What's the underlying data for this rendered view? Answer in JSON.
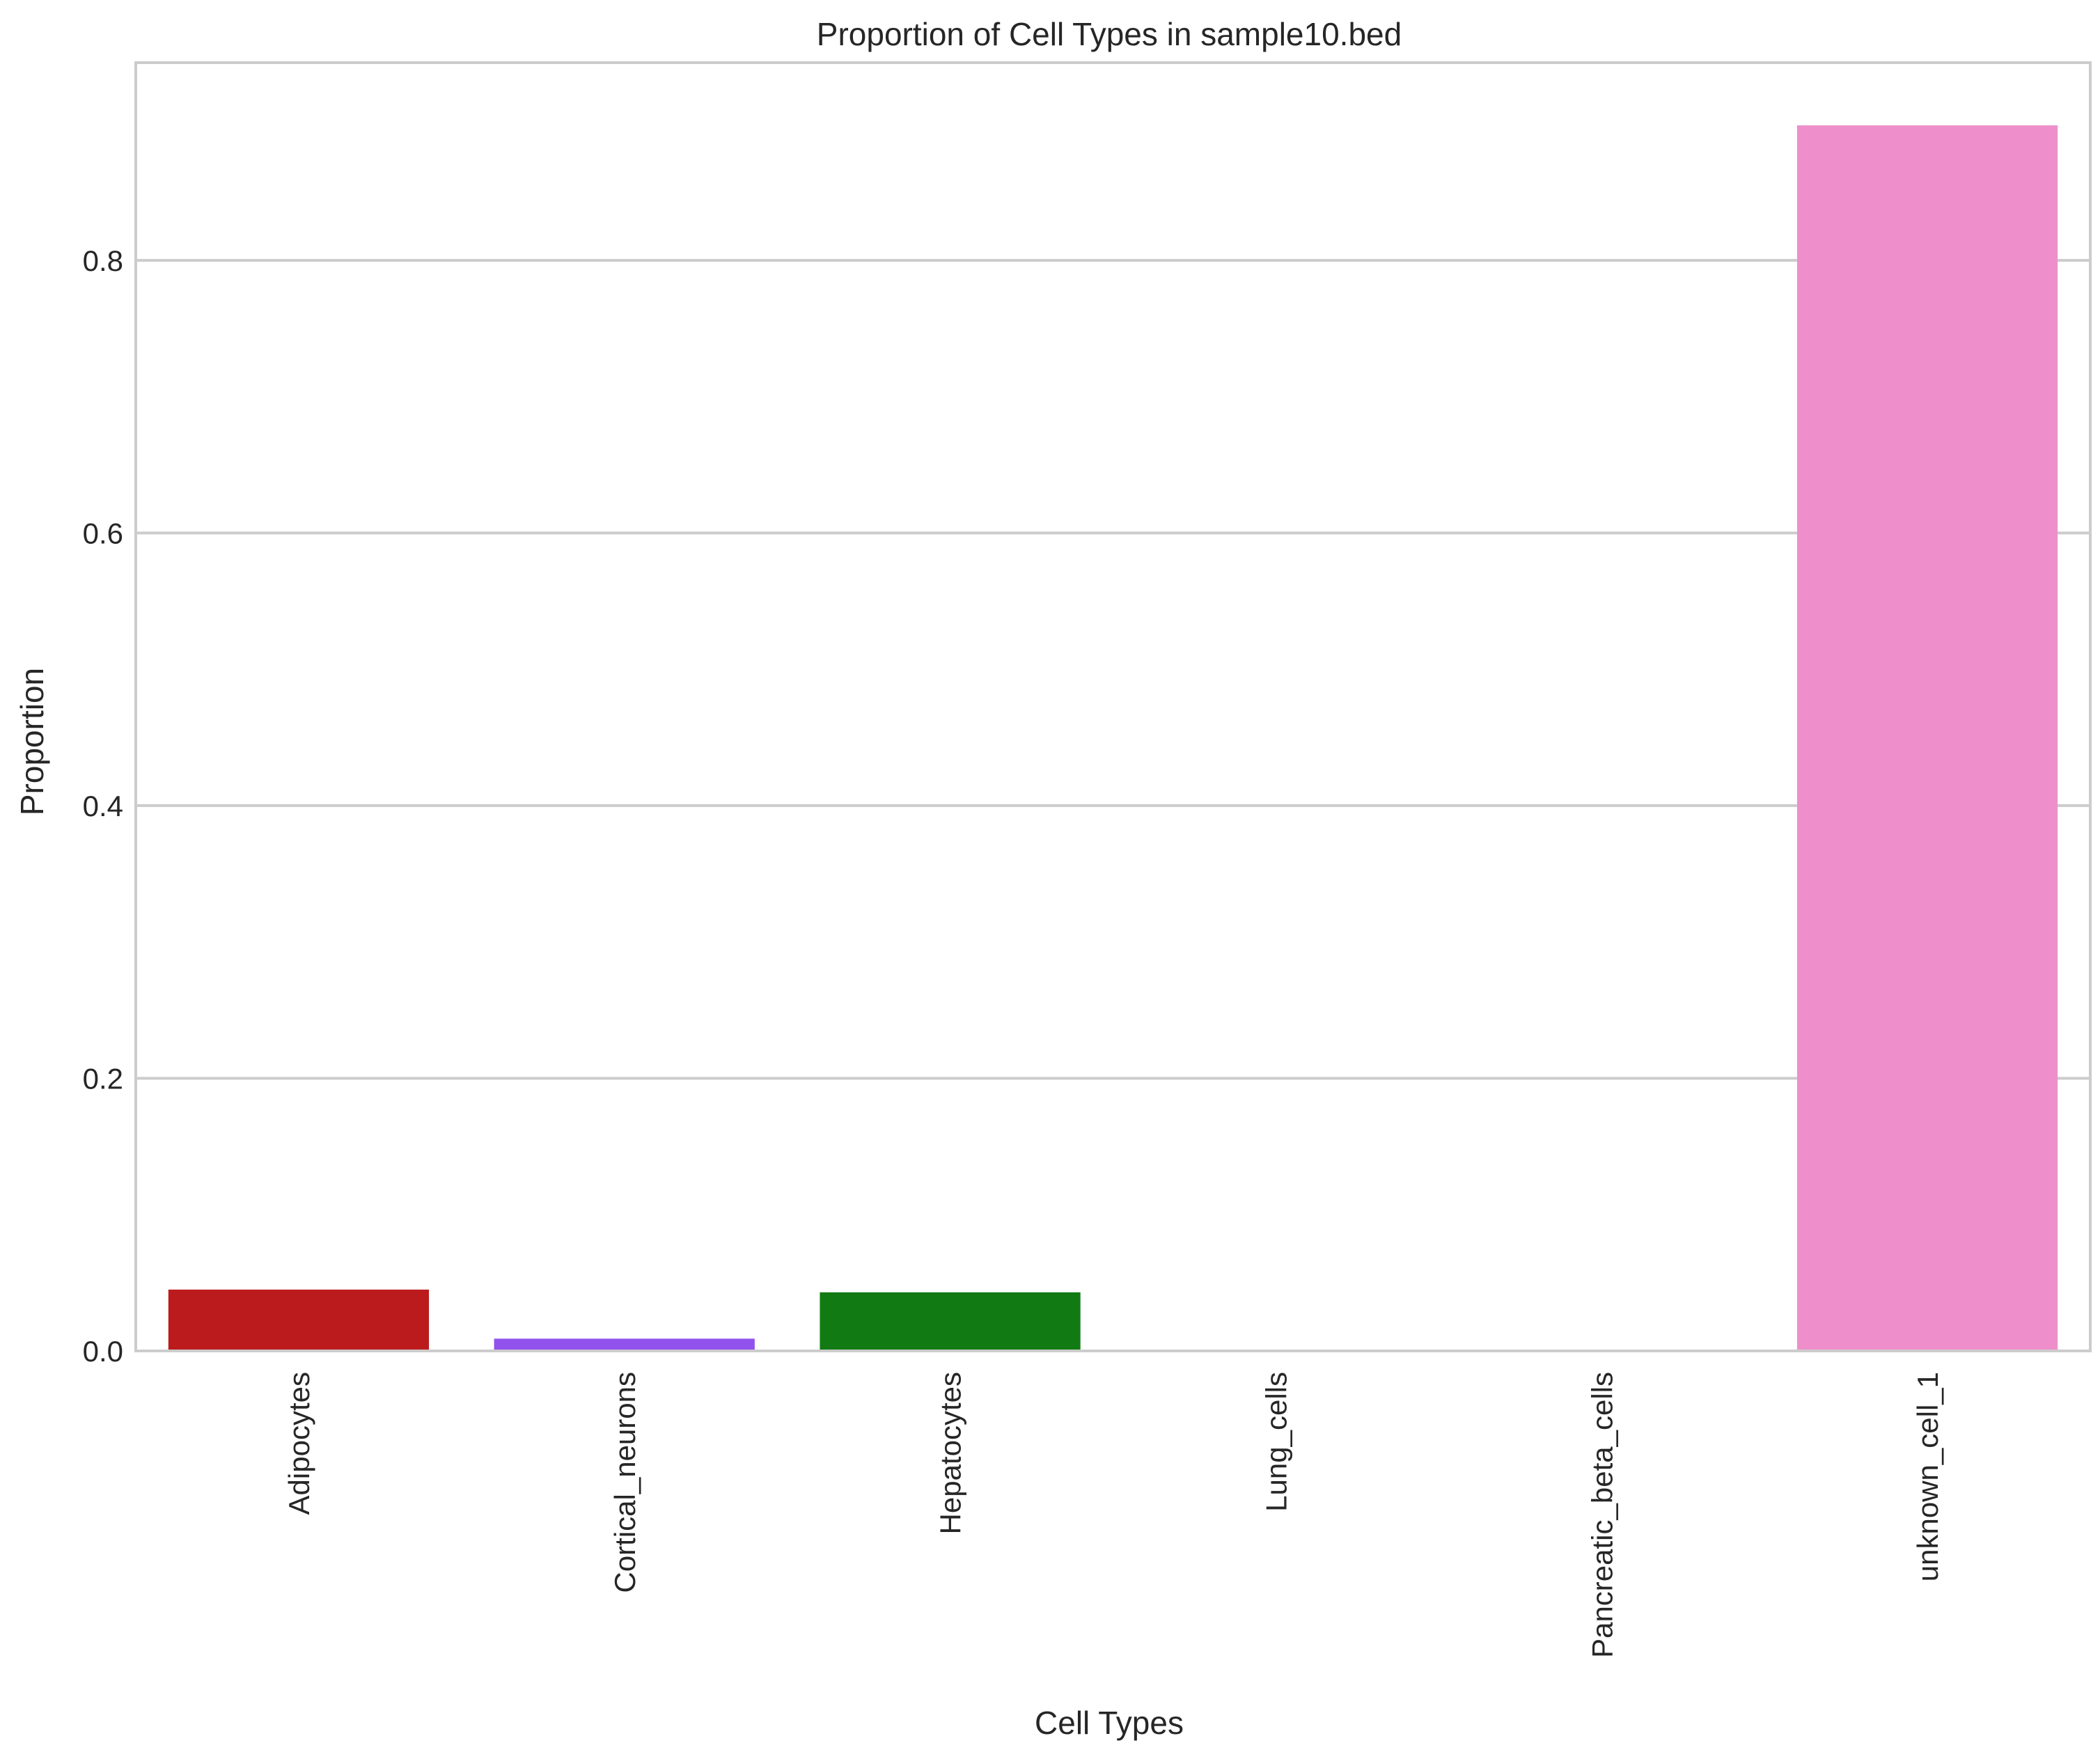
{
  "chart_data": {
    "type": "bar",
    "title": "Proportion of Cell Types in sample10.bed",
    "xlabel": "Cell Types",
    "ylabel": "Proportion",
    "categories": [
      "Adipocytes",
      "Cortical_neurons",
      "Hepatocytes",
      "Lung_cells",
      "Pancreatic_beta_cells",
      "unknown_cell_1"
    ],
    "values": [
      0.045,
      0.009,
      0.043,
      0.0,
      0.0,
      0.899
    ],
    "colors": [
      "#bc1b1e",
      "#9151ec",
      "#127a13",
      "#4a4a4a",
      "#4a4a4a",
      "#ee8fcb"
    ],
    "ylim": [
      0,
      0.945
    ],
    "yticks": [
      0.0,
      0.2,
      0.4,
      0.6,
      0.8
    ],
    "ytick_labels": [
      "0.0",
      "0.2",
      "0.4",
      "0.6",
      "0.8"
    ],
    "grid": "horizontal",
    "xtick_rotation": "vertical",
    "frame_color": "#cccccc",
    "grid_color": "#cccccc"
  }
}
